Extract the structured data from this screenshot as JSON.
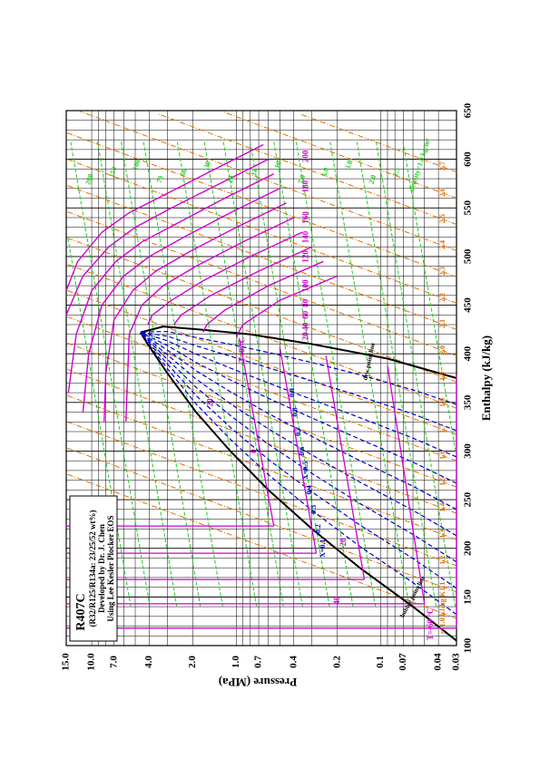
{
  "chart_data": {
    "type": "line",
    "title": "R407C",
    "info_lines": [
      "(R32/R125/R134a: 23/25/52 wt%)",
      "Developed by Dr. J. Chen",
      "Using Lee Kesler Plocker EOS"
    ],
    "xlabel": "Enthalpy (kJ/kg)",
    "ylabel": "Pressure (MPa)",
    "x_scale": "linear",
    "y_scale": "log",
    "xlim": [
      100,
      650
    ],
    "ylim": [
      0.03,
      15.0
    ],
    "x_ticks": [
      100,
      150,
      200,
      250,
      300,
      350,
      400,
      450,
      500,
      550,
      600,
      650
    ],
    "y_ticks": [
      {
        "value": 0.03,
        "label": "0.03"
      },
      {
        "value": 0.04,
        "label": "0.04"
      },
      {
        "value": 0.07,
        "label": "0.07"
      },
      {
        "value": 0.1,
        "label": "0.1"
      },
      {
        "value": 0.2,
        "label": "0.2"
      },
      {
        "value": 0.4,
        "label": "0.4"
      },
      {
        "value": 0.7,
        "label": "0.7"
      },
      {
        "value": 1.0,
        "label": "1.0"
      },
      {
        "value": 2.0,
        "label": "2.0"
      },
      {
        "value": 4.0,
        "label": "4.0"
      },
      {
        "value": 7.0,
        "label": "7.0"
      },
      {
        "value": 10.0,
        "label": "10.0"
      },
      {
        "value": 15.0,
        "label": "15.0"
      }
    ],
    "grid": true,
    "saturation_dome": {
      "critical_point": {
        "h": 422,
        "p": 4.6
      },
      "bubble_line": {
        "label": "bubble point line",
        "h": [
          105,
          140,
          180,
          220,
          260,
          300,
          340,
          380,
          410,
          422
        ],
        "p": [
          0.03,
          0.06,
          0.14,
          0.3,
          0.6,
          1.1,
          1.9,
          3.0,
          4.1,
          4.6
        ]
      },
      "dew_line": {
        "label": "dew point line",
        "h": [
          375,
          395,
          410,
          420,
          425,
          428,
          422
        ],
        "p": [
          0.03,
          0.09,
          0.3,
          0.8,
          1.8,
          3.2,
          4.6
        ]
      }
    },
    "isotherms": {
      "unit": "°C",
      "labels": [
        "T=-60 °C",
        "-40",
        "-20",
        "0",
        "20",
        "T=0 °C",
        "20",
        "40",
        "60",
        "80",
        "100",
        "120",
        "140",
        "160",
        "180",
        "200"
      ],
      "series": [
        {
          "name": "-60",
          "points": [
            [
              118,
              0.03
            ],
            [
              118,
              15.0
            ]
          ],
          "vapor": [
            [
              378,
              0.03
            ],
            [
              420,
              0.018
            ]
          ]
        },
        {
          "name": "-40",
          "points": [
            [
              143,
              0.05
            ],
            [
              143,
              15.0
            ]
          ],
          "vapor": [
            [
              388,
              0.09
            ],
            [
              420,
              0.065
            ]
          ]
        },
        {
          "name": "-20",
          "points": [
            [
              168,
              0.13
            ],
            [
              168,
              15.0
            ]
          ],
          "vapor": [
            [
              398,
              0.24
            ],
            [
              440,
              0.17
            ]
          ]
        },
        {
          "name": "0",
          "points": [
            [
              195,
              0.28
            ],
            [
              195,
              15.0
            ]
          ],
          "vapor": [
            [
              407,
              0.5
            ],
            [
              450,
              0.36
            ]
          ]
        },
        {
          "name": "20",
          "points": [
            [
              223,
              0.55
            ],
            [
              223,
              15.0
            ]
          ],
          "vapor": [
            [
              415,
              0.95
            ],
            [
              460,
              0.7
            ]
          ]
        }
      ],
      "superheat_curves": [
        {
          "name": "20",
          "h": [
            480,
            455,
            430,
            418
          ],
          "p": [
            0.2,
            0.5,
            0.9,
            1.0
          ]
        },
        {
          "name": "40",
          "h": [
            495,
            470,
            445,
            430,
            422
          ],
          "p": [
            0.25,
            0.6,
            1.2,
            1.6,
            1.7
          ]
        },
        {
          "name": "60",
          "h": [
            510,
            485,
            460,
            440,
            430
          ],
          "p": [
            0.3,
            0.7,
            1.5,
            2.4,
            2.7
          ]
        },
        {
          "name": "80",
          "h": [
            525,
            500,
            475,
            455,
            440,
            430
          ],
          "p": [
            0.35,
            0.8,
            1.7,
            2.8,
            3.8,
            4.1
          ]
        },
        {
          "name": "100",
          "h": [
            540,
            515,
            490,
            470,
            450,
            420,
            330
          ],
          "p": [
            0.4,
            0.9,
            1.9,
            3.2,
            4.5,
            5.5,
            5.8
          ]
        },
        {
          "name": "120",
          "h": [
            555,
            530,
            505,
            485,
            465,
            435,
            380,
            330
          ],
          "p": [
            0.45,
            1.0,
            2.1,
            3.6,
            5.2,
            7.0,
            8.0,
            8.2
          ]
        },
        {
          "name": "140",
          "h": [
            570,
            545,
            520,
            500,
            480,
            450,
            400,
            340
          ],
          "p": [
            0.5,
            1.1,
            2.3,
            4.0,
            6.0,
            8.5,
            10.5,
            11.5
          ]
        },
        {
          "name": "160",
          "h": [
            585,
            560,
            535,
            515,
            495,
            465,
            420,
            360
          ],
          "p": [
            0.55,
            1.2,
            2.5,
            4.5,
            6.8,
            10.0,
            12.8,
            14.5
          ]
        },
        {
          "name": "180",
          "h": [
            600,
            575,
            550,
            530,
            510,
            480,
            440
          ],
          "p": [
            0.6,
            1.3,
            2.8,
            5.0,
            7.6,
            11.5,
            15.0
          ]
        },
        {
          "name": "200",
          "h": [
            615,
            590,
            565,
            545,
            525,
            495,
            465
          ],
          "p": [
            0.65,
            1.4,
            3.0,
            5.5,
            8.5,
            12.5,
            15.0
          ]
        }
      ]
    },
    "isentropes": {
      "unit": "kJ/kg K",
      "labels": [
        "s=1.0 kJ/kg K",
        "1.1",
        "1.2",
        "1.3",
        "1.4",
        "1.5",
        "1.6",
        "1.7",
        "1.8",
        "1.9",
        "2.0",
        "2.1",
        "2.2",
        "2.3",
        "2.4",
        "2.5",
        "2.6",
        "2.7"
      ],
      "values": [
        1.0,
        1.1,
        1.2,
        1.3,
        1.4,
        1.5,
        1.6,
        1.7,
        1.8,
        1.9,
        2.0,
        2.1,
        2.2,
        2.3,
        2.4,
        2.5,
        2.6,
        2.7
      ]
    },
    "isochores": {
      "unit": "kg/m³",
      "labels": [
        "density=1.0 kg/m³",
        "1.5",
        "2.0",
        "3.0",
        "5.0",
        "7.0",
        "10",
        "15",
        "20",
        "30",
        "50",
        "70",
        "100",
        "150",
        "200"
      ],
      "values": [
        1.0,
        1.5,
        2.0,
        3.0,
        5.0,
        7.0,
        10,
        15,
        20,
        30,
        50,
        70,
        100,
        150,
        200
      ]
    },
    "quality_lines": {
      "labels": [
        "X=0.1",
        "0.2",
        "0.3",
        "0.4",
        "X=0.5",
        "0.6",
        "0.7",
        "0.8",
        "0.9"
      ],
      "values": [
        0.1,
        0.2,
        0.3,
        0.4,
        0.5,
        0.6,
        0.7,
        0.8,
        0.9
      ]
    },
    "colors": {
      "isotherm": "#d000d0",
      "isochore": "#22cc22",
      "quality": "#0000cc",
      "isentrope": "#e07000",
      "dome": "#000000",
      "grid": "#000000"
    }
  }
}
